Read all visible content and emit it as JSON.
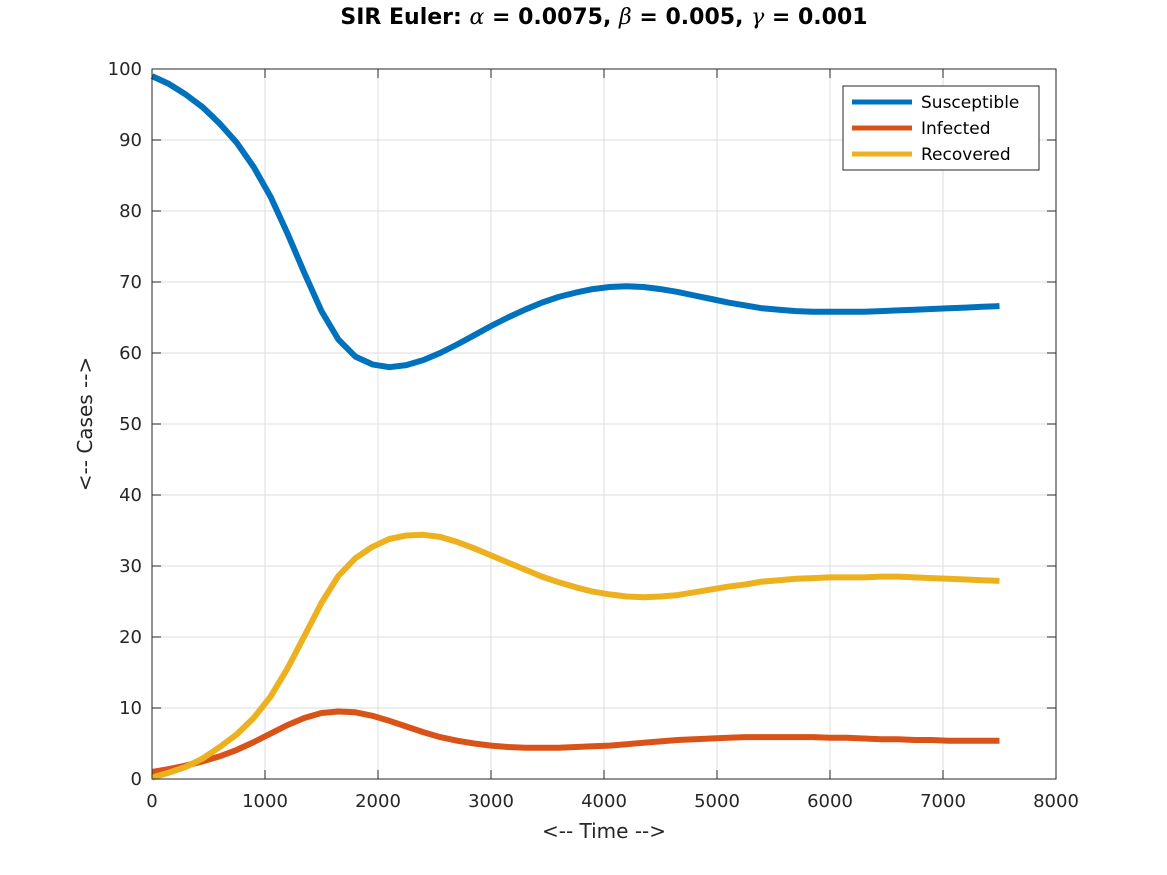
{
  "chart_data": {
    "type": "line",
    "title": {
      "prefix": "SIR Euler: ",
      "alpha_symbol": "α",
      "alpha_text": " = 0.0075, ",
      "beta_symbol": "β",
      "beta_text": " = 0.005, ",
      "gamma_symbol": "γ",
      "gamma_text": " = 0.001"
    },
    "xlabel": "<-- Time -->",
    "ylabel": "<-- Cases -->",
    "xlim": [
      0,
      8000
    ],
    "ylim": [
      0,
      100
    ],
    "xticks": [
      0,
      1000,
      2000,
      3000,
      4000,
      5000,
      6000,
      7000,
      8000
    ],
    "yticks": [
      0,
      10,
      20,
      30,
      40,
      50,
      60,
      70,
      80,
      90,
      100
    ],
    "grid": true,
    "legend_position": "top-right",
    "x": [
      0,
      150,
      300,
      450,
      600,
      750,
      900,
      1050,
      1200,
      1350,
      1500,
      1650,
      1800,
      1950,
      2100,
      2250,
      2400,
      2550,
      2700,
      2850,
      3000,
      3150,
      3300,
      3450,
      3600,
      3750,
      3900,
      4050,
      4200,
      4350,
      4500,
      4650,
      4800,
      4950,
      5100,
      5250,
      5400,
      5550,
      5700,
      5850,
      6000,
      6150,
      6300,
      6450,
      6600,
      6750,
      6900,
      7050,
      7200,
      7350,
      7500
    ],
    "series": [
      {
        "name": "Susceptible",
        "color": "#0072BD",
        "values": [
          99.0,
          97.9,
          96.4,
          94.6,
          92.3,
          89.6,
          86.2,
          82.0,
          76.8,
          71.2,
          65.9,
          61.9,
          59.5,
          58.4,
          58.0,
          58.3,
          59.0,
          60.0,
          61.2,
          62.5,
          63.8,
          65.0,
          66.1,
          67.1,
          67.9,
          68.5,
          69.0,
          69.3,
          69.4,
          69.3,
          69.0,
          68.6,
          68.1,
          67.6,
          67.1,
          66.7,
          66.3,
          66.1,
          65.9,
          65.8,
          65.8,
          65.8,
          65.8,
          65.9,
          66.0,
          66.1,
          66.2,
          66.3,
          66.4,
          66.5,
          66.6
        ]
      },
      {
        "name": "Infected",
        "color": "#D95319",
        "values": [
          1.0,
          1.4,
          1.9,
          2.5,
          3.2,
          4.1,
          5.2,
          6.4,
          7.6,
          8.6,
          9.3,
          9.5,
          9.4,
          8.9,
          8.2,
          7.4,
          6.6,
          5.9,
          5.4,
          5.0,
          4.7,
          4.5,
          4.4,
          4.4,
          4.4,
          4.5,
          4.6,
          4.7,
          4.9,
          5.1,
          5.3,
          5.5,
          5.6,
          5.7,
          5.8,
          5.9,
          5.9,
          5.9,
          5.9,
          5.9,
          5.8,
          5.8,
          5.7,
          5.6,
          5.6,
          5.5,
          5.5,
          5.4,
          5.4,
          5.4,
          5.4
        ]
      },
      {
        "name": "Recovered",
        "color": "#EDB120",
        "values": [
          0.2,
          0.9,
          1.7,
          2.9,
          4.5,
          6.3,
          8.6,
          11.6,
          15.6,
          20.2,
          24.8,
          28.6,
          31.1,
          32.7,
          33.8,
          34.3,
          34.4,
          34.1,
          33.4,
          32.5,
          31.5,
          30.5,
          29.5,
          28.5,
          27.7,
          27.0,
          26.4,
          26.0,
          25.7,
          25.6,
          25.7,
          25.9,
          26.3,
          26.7,
          27.1,
          27.4,
          27.8,
          28.0,
          28.2,
          28.3,
          28.4,
          28.4,
          28.4,
          28.5,
          28.5,
          28.4,
          28.3,
          28.2,
          28.1,
          28.0,
          27.9
        ]
      }
    ]
  }
}
